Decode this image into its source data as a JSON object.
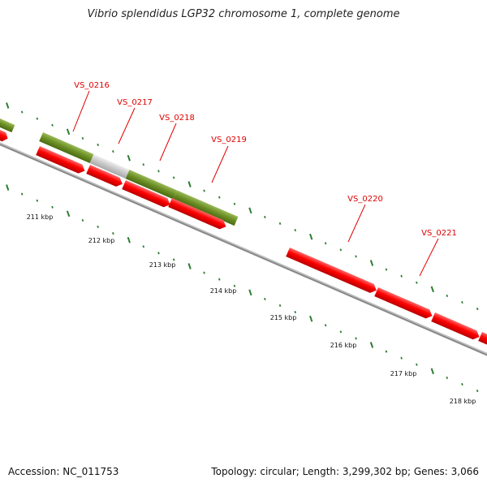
{
  "title": "Vibrio splendidus LGP32 chromosome 1, complete genome",
  "footer": {
    "accession": "Accession: NC_011753",
    "summary": "Topology: circular; Length: 3,299,302 bp; Genes: 3,066"
  },
  "colors": {
    "gene_red": "#ff0000",
    "cds_green": "#6b8e23",
    "cds_gray": "#c8c8c8",
    "backbone": "#808080",
    "tick_green": "#2e7d32",
    "label_red": "#e00000"
  },
  "genes": [
    {
      "label": "VS_0216"
    },
    {
      "label": "VS_0217"
    },
    {
      "label": "VS_0218"
    },
    {
      "label": "VS_0219"
    },
    {
      "label": "VS_0220"
    },
    {
      "label": "VS_0221"
    }
  ],
  "kbp_ticks": [
    "211 kbp",
    "212 kbp",
    "213 kbp",
    "214 kbp",
    "215 kbp",
    "216 kbp",
    "217 kbp",
    "218 kbp"
  ]
}
